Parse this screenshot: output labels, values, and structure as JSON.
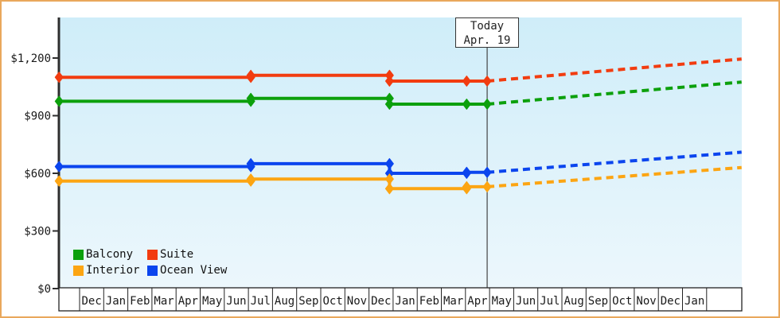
{
  "frame": {
    "border_color": "#E9A85C",
    "background": "#ffffff"
  },
  "plot": {
    "gradient_top": "#CFEDF9",
    "gradient_bottom": "#ECF7FC",
    "axis_color": "#2E2E2E",
    "strip_border_color": "#222222",
    "today_line_color": "#444444",
    "text_color": "#1A1A1A"
  },
  "today_marker": {
    "line1": "Today",
    "line2": "Apr. 19"
  },
  "y_axis": {
    "ticks": [
      {
        "value": 0,
        "label": "$0"
      },
      {
        "value": 300,
        "label": "$300"
      },
      {
        "value": 600,
        "label": "$600"
      },
      {
        "value": 900,
        "label": "$900"
      },
      {
        "value": 1200,
        "label": "$1,200"
      }
    ]
  },
  "legend": {
    "items": [
      {
        "label": "Balcony",
        "color": "#0CA00C"
      },
      {
        "label": "Suite",
        "color": "#F23C10"
      },
      {
        "label": "Interior",
        "color": "#FCA513"
      },
      {
        "label": "Ocean View",
        "color": "#0B45EE"
      }
    ]
  },
  "chart_data": {
    "type": "line",
    "title": "",
    "xlabel": "",
    "ylabel": "",
    "x_categories": [
      "Dec",
      "Jan",
      "Feb",
      "Mar",
      "Apr",
      "May",
      "Jun",
      "Jul",
      "Aug",
      "Sep",
      "Oct",
      "Nov",
      "Dec",
      "Jan",
      "Feb",
      "Mar",
      "Apr",
      "May",
      "Jun",
      "Jul",
      "Aug",
      "Sep",
      "Oct",
      "Nov",
      "Dec",
      "Jan"
    ],
    "ylim": [
      0,
      1410
    ],
    "y_tick_values": [
      0,
      300,
      600,
      900,
      1200
    ],
    "grid": false,
    "legend_position": "bottom-left",
    "today": {
      "month_pos": 16.9,
      "label": "Apr. 19"
    },
    "series": [
      {
        "name": "Suite",
        "color": "#F23C10",
        "solid_points": [
          [
            -0.85,
            1100
          ],
          [
            7.1,
            1100
          ],
          [
            7.1,
            1110
          ],
          [
            12.85,
            1110
          ],
          [
            12.85,
            1080
          ],
          [
            16.05,
            1080
          ],
          [
            16.9,
            1080
          ]
        ],
        "projection": [
          [
            16.9,
            1080
          ],
          [
            27.45,
            1195
          ]
        ]
      },
      {
        "name": "Balcony",
        "color": "#0CA00C",
        "solid_points": [
          [
            -0.85,
            975
          ],
          [
            7.1,
            975
          ],
          [
            7.1,
            990
          ],
          [
            12.85,
            990
          ],
          [
            12.85,
            960
          ],
          [
            16.05,
            960
          ],
          [
            16.9,
            960
          ]
        ],
        "projection": [
          [
            16.9,
            960
          ],
          [
            27.45,
            1075
          ]
        ]
      },
      {
        "name": "Ocean View",
        "color": "#0B45EE",
        "solid_points": [
          [
            -0.85,
            635
          ],
          [
            7.1,
            635
          ],
          [
            7.1,
            650
          ],
          [
            12.85,
            650
          ],
          [
            12.85,
            600
          ],
          [
            16.05,
            600
          ],
          [
            16.05,
            605
          ],
          [
            16.9,
            605
          ]
        ],
        "projection": [
          [
            16.9,
            605
          ],
          [
            27.45,
            710
          ]
        ]
      },
      {
        "name": "Interior",
        "color": "#FCA513",
        "solid_points": [
          [
            -0.85,
            560
          ],
          [
            7.1,
            560
          ],
          [
            7.1,
            570
          ],
          [
            12.85,
            570
          ],
          [
            12.85,
            520
          ],
          [
            16.05,
            520
          ],
          [
            16.05,
            530
          ],
          [
            16.9,
            530
          ]
        ],
        "projection": [
          [
            16.9,
            530
          ],
          [
            27.45,
            630
          ]
        ]
      }
    ]
  }
}
